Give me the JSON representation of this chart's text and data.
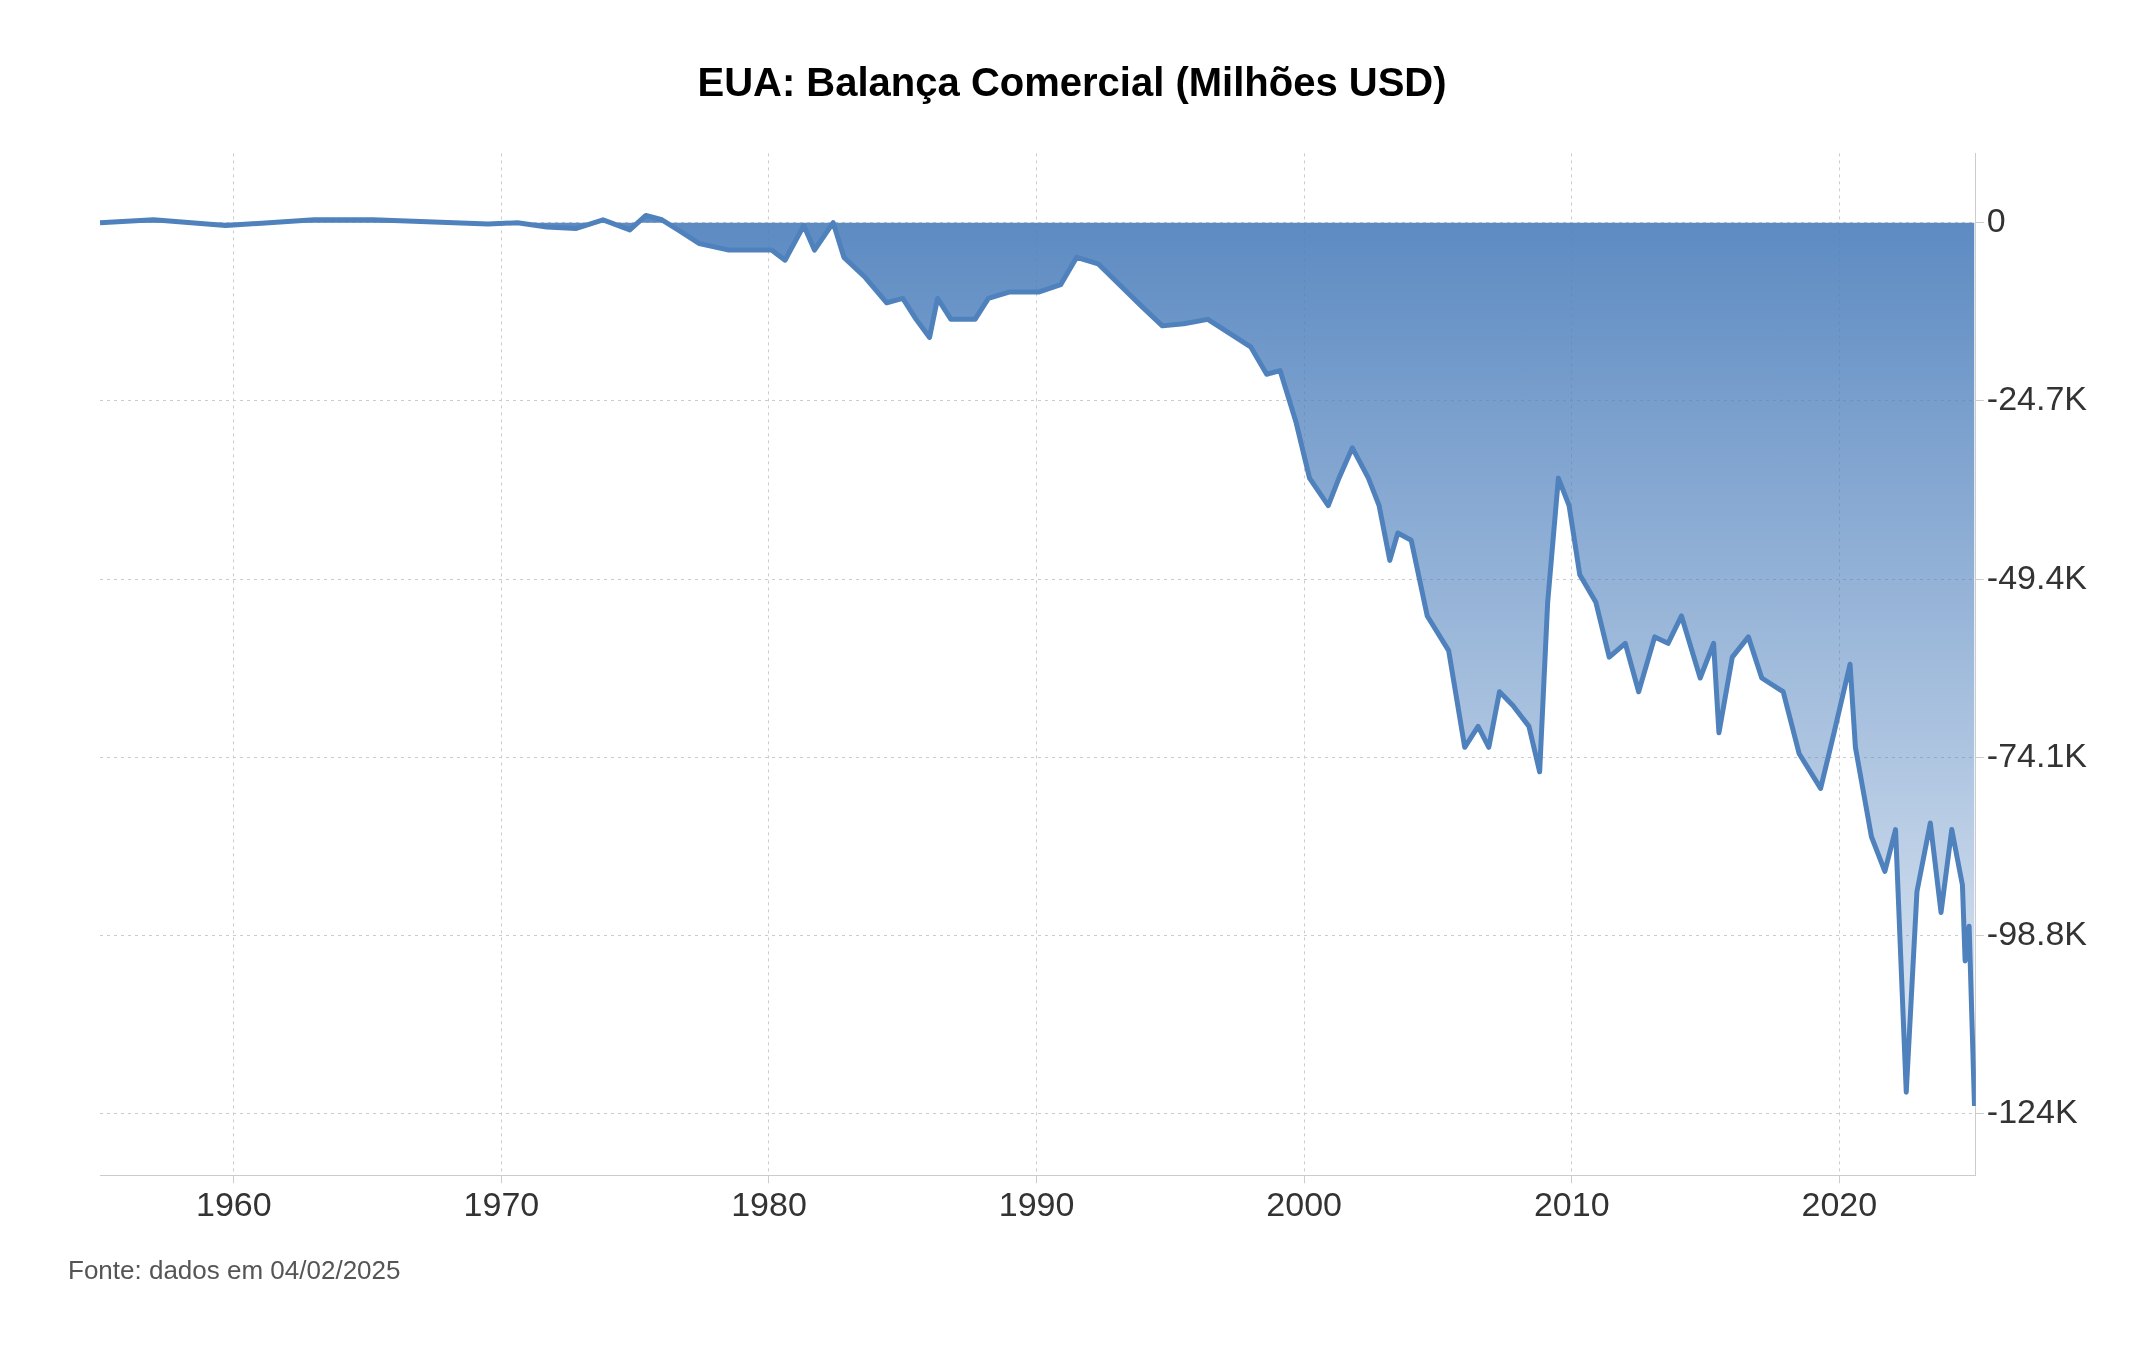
{
  "chart_data": {
    "type": "area",
    "title": "EUA: Balança Comercial (Milhões USD)",
    "x": [
      1955,
      1957,
      1959.7,
      1963,
      1965.2,
      1969.5,
      1970.6,
      1971.7,
      1972.8,
      1973.8,
      1974.8,
      1975.4,
      1976,
      1976.6,
      1977.4,
      1978.5,
      1980.1,
      1980.6,
      1981.3,
      1981.7,
      1982.4,
      1982.8,
      1983.6,
      1984.4,
      1985,
      1985.5,
      1986,
      1986.3,
      1986.8,
      1987.7,
      1988.2,
      1989,
      1990.1,
      1990.9,
      1991.5,
      1992.3,
      1993.1,
      1993.9,
      1994.7,
      1995.5,
      1996.4,
      1997.2,
      1998,
      1998.6,
      1999.1,
      1999.7,
      2000.2,
      2000.9,
      2001.3,
      2001.8,
      2002.4,
      2002.8,
      2003.2,
      2003.5,
      2004,
      2004.6,
      2005.4,
      2006,
      2006.5,
      2006.9,
      2007.3,
      2007.8,
      2008.4,
      2008.8,
      2009.1,
      2009.5,
      2009.9,
      2010.3,
      2010.9,
      2011.4,
      2012,
      2012.5,
      2013.1,
      2013.6,
      2014.1,
      2014.8,
      2015.3,
      2015.5,
      2016,
      2016.6,
      2017.1,
      2017.9,
      2018.5,
      2019.3,
      2019.8,
      2020.4,
      2020.6,
      2021.2,
      2021.7,
      2022.1,
      2022.5,
      2022.9,
      2023.4,
      2023.8,
      2024.2,
      2024.6,
      2024.7,
      2024.85,
      2025.05
    ],
    "values": [
      0,
      400,
      -400,
      400,
      400,
      -200,
      0,
      -600,
      -800,
      400,
      -1000,
      1000,
      400,
      -1000,
      -2900,
      -3800,
      -3800,
      -5200,
      -400,
      -3800,
      0,
      -4800,
      -7600,
      -11100,
      -10500,
      -13400,
      -15900,
      -10500,
      -13400,
      -13400,
      -10500,
      -9600,
      -9600,
      -8600,
      -4800,
      -5700,
      -8600,
      -11500,
      -14300,
      -14000,
      -13400,
      -15300,
      -17200,
      -21000,
      -20500,
      -27700,
      -35400,
      -39200,
      -35400,
      -31200,
      -35400,
      -39200,
      -46800,
      -43000,
      -44000,
      -54500,
      -59300,
      -72700,
      -69800,
      -72700,
      -65000,
      -66900,
      -69800,
      -76100,
      -52600,
      -35400,
      -39200,
      -48800,
      -52600,
      -60200,
      -58300,
      -65000,
      -57400,
      -58300,
      -54500,
      -63100,
      -58300,
      -70700,
      -60200,
      -57400,
      -63100,
      -65000,
      -73600,
      -78400,
      -70700,
      -61200,
      -72700,
      -85100,
      -89900,
      -84100,
      -120500,
      -92700,
      -83200,
      -95600,
      -84100,
      -91800,
      -102300,
      -97500,
      -122400
    ],
    "color": "#4f81bd",
    "xlim": [
      1955,
      2025.1
    ],
    "ylim": [
      -132000,
      9600
    ],
    "xticks": [
      1960,
      1970,
      1980,
      1990,
      2000,
      2010,
      2020
    ],
    "yticks": [
      0,
      {
        "value": -24700,
        "label": "-24.7K"
      },
      {
        "value": -49400,
        "label": "-49.4K"
      },
      {
        "value": -74100,
        "label": "-74.1K"
      },
      {
        "value": -98800,
        "label": "-98.8K"
      },
      {
        "value": -123500,
        "label": "-124K"
      }
    ],
    "grid": true,
    "annotations": [
      "Fonte: dados em 04/02/2025"
    ]
  }
}
